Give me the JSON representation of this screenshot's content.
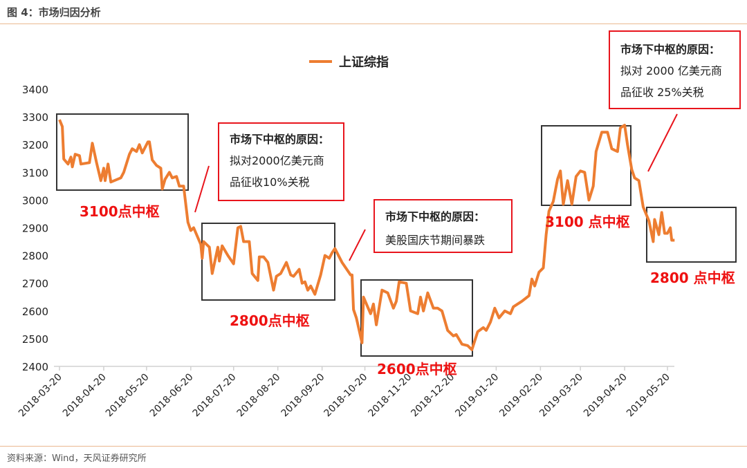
{
  "figure_title": "图 4：市场归因分析",
  "source": "资料来源：Wind，天风证券研究所",
  "colors": {
    "series": "#ed7d31",
    "annotation_red": "#e8141c",
    "box_black": "#333333",
    "rule": "#eab890"
  },
  "chart_data": {
    "type": "line",
    "title": "",
    "xlabel": "",
    "ylabel": "",
    "ylim": [
      2400,
      3400
    ],
    "yticks": [
      2400,
      2500,
      2600,
      2700,
      2800,
      2900,
      3000,
      3100,
      3200,
      3300,
      3400
    ],
    "xticks": [
      "2018-03-20",
      "2018-04-20",
      "2018-05-20",
      "2018-06-20",
      "2018-07-20",
      "2018-08-20",
      "2018-09-20",
      "2018-10-20",
      "2018-11-20",
      "2018-12-20",
      "2019-01-20",
      "2019-02-20",
      "2019-03-20",
      "2019-04-20",
      "2019-05-20"
    ],
    "grid": false,
    "legend": "top-center",
    "series": [
      {
        "name": "上证综指",
        "points": [
          [
            "2018-03-20",
            3290
          ],
          [
            "2018-03-22",
            3265
          ],
          [
            "2018-03-23",
            3148
          ],
          [
            "2018-03-26",
            3130
          ],
          [
            "2018-03-28",
            3155
          ],
          [
            "2018-03-29",
            3120
          ],
          [
            "2018-03-31",
            3165
          ],
          [
            "2018-04-03",
            3160
          ],
          [
            "2018-04-04",
            3130
          ],
          [
            "2018-04-10",
            3135
          ],
          [
            "2018-04-12",
            3205
          ],
          [
            "2018-04-15",
            3135
          ],
          [
            "2018-04-18",
            3070
          ],
          [
            "2018-04-20",
            3115
          ],
          [
            "2018-04-21",
            3070
          ],
          [
            "2018-04-23",
            3130
          ],
          [
            "2018-04-25",
            3065
          ],
          [
            "2018-05-02",
            3080
          ],
          [
            "2018-05-04",
            3100
          ],
          [
            "2018-05-08",
            3165
          ],
          [
            "2018-05-10",
            3185
          ],
          [
            "2018-05-13",
            3175
          ],
          [
            "2018-05-15",
            3200
          ],
          [
            "2018-05-17",
            3170
          ],
          [
            "2018-05-21",
            3210
          ],
          [
            "2018-05-22",
            3210
          ],
          [
            "2018-05-24",
            3145
          ],
          [
            "2018-05-27",
            3125
          ],
          [
            "2018-05-30",
            3115
          ],
          [
            "2018-05-31",
            3040
          ],
          [
            "2018-06-02",
            3075
          ],
          [
            "2018-06-05",
            3100
          ],
          [
            "2018-06-07",
            3080
          ],
          [
            "2018-06-10",
            3085
          ],
          [
            "2018-06-12",
            3050
          ],
          [
            "2018-06-15",
            3050
          ],
          [
            "2018-06-18",
            2920
          ],
          [
            "2018-06-20",
            2890
          ],
          [
            "2018-06-22",
            2900
          ],
          [
            "2018-06-27",
            2840
          ],
          [
            "2018-06-28",
            2790
          ],
          [
            "2018-06-29",
            2850
          ],
          [
            "2018-07-03",
            2830
          ],
          [
            "2018-07-05",
            2735
          ],
          [
            "2018-07-09",
            2830
          ],
          [
            "2018-07-10",
            2780
          ],
          [
            "2018-07-12",
            2835
          ],
          [
            "2018-07-16",
            2800
          ],
          [
            "2018-07-20",
            2770
          ],
          [
            "2018-07-23",
            2900
          ],
          [
            "2018-07-25",
            2905
          ],
          [
            "2018-07-27",
            2850
          ],
          [
            "2018-07-31",
            2850
          ],
          [
            "2018-08-02",
            2735
          ],
          [
            "2018-08-06",
            2710
          ],
          [
            "2018-08-07",
            2795
          ],
          [
            "2018-08-10",
            2795
          ],
          [
            "2018-08-13",
            2775
          ],
          [
            "2018-08-17",
            2675
          ],
          [
            "2018-08-19",
            2725
          ],
          [
            "2018-08-22",
            2735
          ],
          [
            "2018-08-26",
            2775
          ],
          [
            "2018-08-29",
            2730
          ],
          [
            "2018-08-31",
            2725
          ],
          [
            "2018-09-04",
            2750
          ],
          [
            "2018-09-06",
            2700
          ],
          [
            "2018-09-08",
            2705
          ],
          [
            "2018-09-10",
            2675
          ],
          [
            "2018-09-12",
            2690
          ],
          [
            "2018-09-15",
            2660
          ],
          [
            "2018-09-19",
            2730
          ],
          [
            "2018-09-22",
            2800
          ],
          [
            "2018-09-25",
            2790
          ],
          [
            "2018-09-27",
            2810
          ],
          [
            "2018-09-29",
            2825
          ],
          [
            "2018-10-04",
            2775
          ],
          [
            "2018-10-10",
            2730
          ],
          [
            "2018-10-11",
            2730
          ],
          [
            "2018-10-12",
            2605
          ],
          [
            "2018-10-14",
            2575
          ],
          [
            "2018-10-18",
            2485
          ],
          [
            "2018-10-19",
            2650
          ],
          [
            "2018-10-24",
            2590
          ],
          [
            "2018-10-26",
            2625
          ],
          [
            "2018-10-28",
            2550
          ],
          [
            "2018-11-01",
            2675
          ],
          [
            "2018-11-05",
            2665
          ],
          [
            "2018-11-09",
            2610
          ],
          [
            "2018-11-11",
            2635
          ],
          [
            "2018-11-13",
            2705
          ],
          [
            "2018-11-18",
            2700
          ],
          [
            "2018-11-21",
            2600
          ],
          [
            "2018-11-26",
            2590
          ],
          [
            "2018-11-28",
            2650
          ],
          [
            "2018-11-30",
            2600
          ],
          [
            "2018-12-03",
            2665
          ],
          [
            "2018-12-07",
            2610
          ],
          [
            "2018-12-10",
            2610
          ],
          [
            "2018-12-13",
            2600
          ],
          [
            "2018-12-17",
            2530
          ],
          [
            "2018-12-21",
            2510
          ],
          [
            "2018-12-23",
            2515
          ],
          [
            "2018-12-27",
            2480
          ],
          [
            "2018-12-31",
            2475
          ],
          [
            "2019-01-03",
            2460
          ],
          [
            "2019-01-07",
            2525
          ],
          [
            "2019-01-11",
            2540
          ],
          [
            "2019-01-13",
            2530
          ],
          [
            "2019-01-16",
            2560
          ],
          [
            "2019-01-19",
            2610
          ],
          [
            "2019-01-22",
            2575
          ],
          [
            "2019-01-26",
            2600
          ],
          [
            "2019-01-30",
            2590
          ],
          [
            "2019-02-01",
            2615
          ],
          [
            "2019-02-07",
            2635
          ],
          [
            "2019-02-12",
            2655
          ],
          [
            "2019-02-14",
            2715
          ],
          [
            "2019-02-16",
            2690
          ],
          [
            "2019-02-19",
            2740
          ],
          [
            "2019-02-22",
            2755
          ],
          [
            "2019-02-24",
            2875
          ],
          [
            "2019-02-26",
            2960
          ],
          [
            "2019-03-01",
            2995
          ],
          [
            "2019-03-04",
            3075
          ],
          [
            "2019-03-06",
            3105
          ],
          [
            "2019-03-08",
            2985
          ],
          [
            "2019-03-11",
            3070
          ],
          [
            "2019-03-14",
            2985
          ],
          [
            "2019-03-17",
            3085
          ],
          [
            "2019-03-20",
            3105
          ],
          [
            "2019-03-23",
            3100
          ],
          [
            "2019-03-26",
            3000
          ],
          [
            "2019-03-29",
            3050
          ],
          [
            "2019-03-31",
            3175
          ],
          [
            "2019-04-04",
            3245
          ],
          [
            "2019-04-08",
            3245
          ],
          [
            "2019-04-11",
            3185
          ],
          [
            "2019-04-15",
            3175
          ],
          [
            "2019-04-17",
            3260
          ],
          [
            "2019-04-20",
            3270
          ],
          [
            "2019-04-22",
            3200
          ],
          [
            "2019-04-25",
            3110
          ],
          [
            "2019-04-27",
            3080
          ],
          [
            "2019-04-30",
            3070
          ],
          [
            "2019-05-03",
            2975
          ],
          [
            "2019-05-07",
            2925
          ],
          [
            "2019-05-10",
            2850
          ],
          [
            "2019-05-11",
            2930
          ],
          [
            "2019-05-14",
            2875
          ],
          [
            "2019-05-16",
            2955
          ],
          [
            "2019-05-18",
            2880
          ],
          [
            "2019-05-20",
            2880
          ],
          [
            "2019-05-22",
            2900
          ],
          [
            "2019-05-23",
            2855
          ],
          [
            "2019-05-25",
            2855
          ]
        ]
      }
    ],
    "annotations": {
      "zones": [
        "3100点中枢",
        "2800点中枢",
        "2600点中枢",
        "3100 点中枢",
        "2800 点中枢"
      ],
      "reasons": [
        {
          "heading": "市场下中枢的原因：",
          "lines": [
            "拟对2000亿美元商",
            "品征收10%关税"
          ]
        },
        {
          "heading": "市场下中枢的原因：",
          "lines": [
            "美股国庆节期间暴跌"
          ]
        },
        {
          "heading": "市场下中枢的原因：",
          "lines": [
            "拟对 2000 亿美元商",
            "品征收 25%关税"
          ]
        }
      ]
    }
  }
}
